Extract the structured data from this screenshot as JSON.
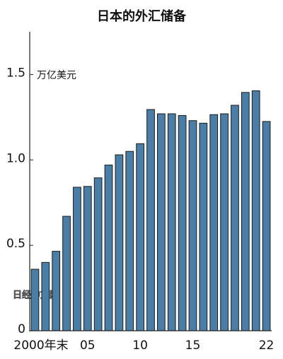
{
  "chart_data": {
    "type": "bar",
    "title": "日本的外汇储备",
    "unit_label": "万亿美元",
    "watermark": "日经中文网",
    "categories": [
      "2000年末",
      null,
      null,
      null,
      null,
      "05",
      null,
      null,
      null,
      null,
      "10",
      null,
      null,
      null,
      null,
      "15",
      null,
      null,
      null,
      null,
      null,
      null,
      "22"
    ],
    "values": [
      0.36,
      0.4,
      0.465,
      0.67,
      0.84,
      0.845,
      0.895,
      0.97,
      1.03,
      1.05,
      1.095,
      1.295,
      1.27,
      1.27,
      1.26,
      1.23,
      1.215,
      1.265,
      1.27,
      1.32,
      1.395,
      1.405,
      1.225
    ],
    "color": "#4a7ea6",
    "ylim": [
      0,
      1.75
    ],
    "yticks": [
      0,
      0.5,
      {
        "value": 1,
        "label": "1.0"
      },
      {
        "value": 1.5,
        "label": "1.5"
      }
    ]
  }
}
